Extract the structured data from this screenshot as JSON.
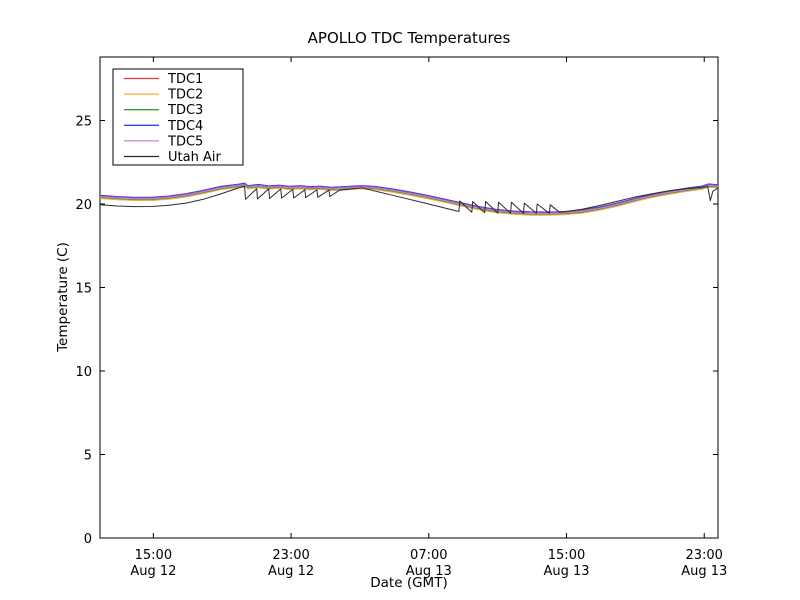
{
  "figure": {
    "background": "#ffffff",
    "frame_color": "#000000"
  },
  "chart_data": {
    "type": "line",
    "title": "APOLLO TDC Temperatures",
    "xlabel": "Date (GMT)",
    "ylabel": "Temperature (C)",
    "xlim": [
      0,
      35.9
    ],
    "ylim": [
      0,
      28.8
    ],
    "grid": false,
    "legend_position": "upper left",
    "y_ticks": [
      0,
      5,
      10,
      15,
      20,
      25
    ],
    "x_ticks": [
      {
        "pos": 3.1,
        "time": "15:00",
        "date": "Aug 12"
      },
      {
        "pos": 11.1,
        "time": "23:00",
        "date": "Aug 12"
      },
      {
        "pos": 19.1,
        "time": "07:00",
        "date": "Aug 13"
      },
      {
        "pos": 27.1,
        "time": "15:00",
        "date": "Aug 13"
      },
      {
        "pos": 35.1,
        "time": "23:00",
        "date": "Aug 13"
      }
    ],
    "bundle_base": [
      [
        0,
        20.42
      ],
      [
        1,
        20.35
      ],
      [
        2,
        20.3
      ],
      [
        3,
        20.3
      ],
      [
        4,
        20.38
      ],
      [
        5,
        20.52
      ],
      [
        6,
        20.72
      ],
      [
        7,
        20.95
      ],
      [
        8,
        21.08
      ],
      [
        8.4,
        21.15
      ],
      [
        8.6,
        21.0
      ],
      [
        9.2,
        21.07
      ],
      [
        9.8,
        20.98
      ],
      [
        10.4,
        21.03
      ],
      [
        11,
        20.96
      ],
      [
        11.6,
        21.0
      ],
      [
        12.2,
        20.94
      ],
      [
        12.8,
        20.97
      ],
      [
        13.4,
        20.9
      ],
      [
        14,
        20.93
      ],
      [
        14.6,
        20.97
      ],
      [
        15.2,
        21.0
      ],
      [
        16,
        20.95
      ],
      [
        17,
        20.8
      ],
      [
        18,
        20.62
      ],
      [
        19,
        20.42
      ],
      [
        20,
        20.2
      ],
      [
        21,
        19.97
      ],
      [
        22,
        19.75
      ],
      [
        23,
        19.58
      ],
      [
        24,
        19.48
      ],
      [
        25,
        19.43
      ],
      [
        26,
        19.42
      ],
      [
        27,
        19.45
      ],
      [
        28,
        19.55
      ],
      [
        29,
        19.72
      ],
      [
        30,
        19.95
      ],
      [
        31,
        20.22
      ],
      [
        32,
        20.47
      ],
      [
        33,
        20.67
      ],
      [
        34,
        20.84
      ],
      [
        35,
        20.98
      ],
      [
        35.35,
        21.1
      ],
      [
        35.9,
        21.05
      ]
    ],
    "series": [
      {
        "name": "TDC1",
        "color": "#e23a3d",
        "offset": 0.04
      },
      {
        "name": "TDC2",
        "color": "#ffaa3d",
        "offset": -0.1
      },
      {
        "name": "TDC3",
        "color": "#3b9a3d",
        "offset": -0.04
      },
      {
        "name": "TDC4",
        "color": "#3c3cf0",
        "offset": 0.1
      },
      {
        "name": "TDC5",
        "color": "#c983d6",
        "offset": 0.01
      },
      {
        "name": "Utah Air",
        "color": "#2b2b2b",
        "points": [
          [
            0,
            19.95
          ],
          [
            1,
            19.88
          ],
          [
            2,
            19.84
          ],
          [
            3,
            19.85
          ],
          [
            4,
            19.92
          ],
          [
            5,
            20.05
          ],
          [
            6,
            20.28
          ],
          [
            7,
            20.6
          ],
          [
            8,
            20.95
          ],
          [
            8.4,
            21.05
          ],
          [
            8.45,
            20.28
          ],
          [
            9.1,
            20.92
          ],
          [
            9.15,
            20.3
          ],
          [
            9.8,
            20.9
          ],
          [
            9.85,
            20.33
          ],
          [
            10.5,
            20.9
          ],
          [
            10.55,
            20.35
          ],
          [
            11.2,
            20.87
          ],
          [
            11.25,
            20.36
          ],
          [
            11.9,
            20.85
          ],
          [
            11.95,
            20.38
          ],
          [
            12.6,
            20.84
          ],
          [
            12.65,
            20.4
          ],
          [
            13.3,
            20.83
          ],
          [
            13.35,
            20.45
          ],
          [
            13.9,
            20.82
          ],
          [
            14.2,
            20.85
          ],
          [
            14.8,
            20.92
          ],
          [
            15.2,
            20.97
          ],
          [
            17,
            20.52
          ],
          [
            19,
            20.02
          ],
          [
            20.85,
            19.55
          ],
          [
            20.9,
            20.18
          ],
          [
            21.6,
            19.5
          ],
          [
            21.65,
            20.15
          ],
          [
            22.35,
            19.48
          ],
          [
            22.4,
            20.15
          ],
          [
            23.1,
            19.46
          ],
          [
            23.15,
            20.1
          ],
          [
            23.85,
            19.45
          ],
          [
            23.9,
            20.1
          ],
          [
            24.6,
            19.44
          ],
          [
            24.65,
            20.05
          ],
          [
            25.35,
            19.44
          ],
          [
            25.4,
            20.0
          ],
          [
            26.1,
            19.45
          ],
          [
            26.15,
            19.95
          ],
          [
            26.7,
            19.5
          ],
          [
            27.3,
            19.58
          ],
          [
            28,
            19.68
          ],
          [
            29,
            19.9
          ],
          [
            30,
            20.15
          ],
          [
            31,
            20.4
          ],
          [
            32,
            20.6
          ],
          [
            33,
            20.78
          ],
          [
            34,
            20.9
          ],
          [
            35,
            21.0
          ],
          [
            35.3,
            21.05
          ],
          [
            35.45,
            20.2
          ],
          [
            35.6,
            20.75
          ],
          [
            35.9,
            20.95
          ]
        ]
      }
    ]
  }
}
